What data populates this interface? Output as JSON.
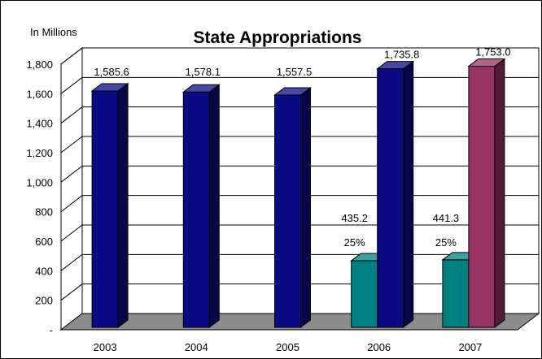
{
  "chart_data": {
    "type": "bar",
    "title": "State Appropriations",
    "ylabel": "In Millions",
    "xlabel": "",
    "ylim": [
      0,
      1800
    ],
    "yticks": [
      0,
      200,
      400,
      600,
      800,
      1000,
      1200,
      1400,
      1600,
      1800
    ],
    "ytick_labels": [
      "-",
      "200",
      "400",
      "600",
      "800",
      "1,000",
      "1,200",
      "1,400",
      "1,600",
      "1,800"
    ],
    "grid": true,
    "legend": "none",
    "categories": [
      "2003",
      "2004",
      "2005",
      "2006",
      "2007"
    ],
    "bars": [
      {
        "category": "2003",
        "value": 1585.6,
        "label": "1,585.6",
        "color": "#0a0a85"
      },
      {
        "category": "2004",
        "value": 1578.1,
        "label": "1,578.1",
        "color": "#0a0a85"
      },
      {
        "category": "2005",
        "value": 1557.5,
        "label": "1,557.5",
        "color": "#0a0a85"
      },
      {
        "category": "2006",
        "value": 435.2,
        "label": "435.2",
        "pct": "25%",
        "color": "#008080"
      },
      {
        "category": "2006",
        "value": 1735.8,
        "label": "1,735.8",
        "color": "#0a0a85"
      },
      {
        "category": "2007",
        "value": 441.3,
        "label": "441.3",
        "pct": "25%",
        "color": "#008080"
      },
      {
        "category": "2007",
        "value": 1753.0,
        "label": "1,753.0",
        "color": "#993366"
      }
    ]
  }
}
